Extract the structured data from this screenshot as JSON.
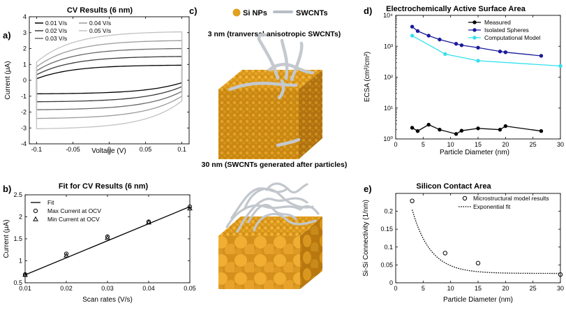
{
  "panel_labels": [
    "a)",
    "b)",
    "c)",
    "d)",
    "e)"
  ],
  "colors": {
    "axis": "#000000",
    "cv_curves": [
      "#000000",
      "#3a3a3a",
      "#6a6a6a",
      "#9a9a9a",
      "#c2c2c2"
    ],
    "measured": "#000000",
    "isolated": "#1a1a9c",
    "computational": "#33e0ee",
    "si_np": "#e0a020",
    "swcnt": "#b8bec6"
  },
  "chart_data": [
    {
      "id": "a",
      "type": "line",
      "title": "CV Results (6 nm)",
      "xlabel": "Voltage (V)",
      "ylabel": "Current (μA)",
      "xlim": [
        -0.11,
        0.11
      ],
      "ylim": [
        -4,
        4
      ],
      "xticks": [
        -0.1,
        -0.05,
        0,
        0.05,
        0.1
      ],
      "xtick_labels": [
        "-0.1",
        "-0.05",
        "0",
        "0.05",
        "0.1"
      ],
      "yticks": [
        -4,
        -3,
        -2,
        -1,
        0,
        1,
        2,
        3,
        4
      ],
      "grid": false,
      "legend_position": "top-left",
      "voltage_range": [
        -0.1,
        0.1
      ],
      "series": [
        {
          "name": "0.01 V/s",
          "upper_start": 0.1,
          "upper_end": 0.95,
          "lower_start": -0.85,
          "lower_end": -0.15
        },
        {
          "name": "0.02 V/s",
          "upper_start": 0.35,
          "upper_end": 1.5,
          "lower_start": -1.35,
          "lower_end": -0.4
        },
        {
          "name": "0.03 V/s",
          "upper_start": 0.6,
          "upper_end": 2.0,
          "lower_start": -1.85,
          "lower_end": -0.7
        },
        {
          "name": "0.04 V/s",
          "upper_start": 0.85,
          "upper_end": 2.5,
          "lower_start": -2.4,
          "lower_end": -1.0
        },
        {
          "name": "0.05 V/s",
          "upper_start": 1.15,
          "upper_end": 3.05,
          "lower_start": -3.05,
          "lower_end": -1.3
        }
      ]
    },
    {
      "id": "b",
      "type": "scatter",
      "title": "Fit for CV Results (6 nm)",
      "xlabel": "Scan rates (V/s)",
      "ylabel": "Current (μA)",
      "xlim": [
        0.01,
        0.05
      ],
      "ylim": [
        0.5,
        2.5
      ],
      "xticks": [
        0.01,
        0.02,
        0.03,
        0.04,
        0.05
      ],
      "yticks": [
        0.5,
        1,
        1.5,
        2,
        2.5
      ],
      "grid": false,
      "legend_position": "top-left",
      "x": [
        0.01,
        0.02,
        0.03,
        0.04,
        0.05
      ],
      "fit": {
        "name": "Fit",
        "x": [
          0.01,
          0.05
        ],
        "y": [
          0.68,
          2.23
        ]
      },
      "series": [
        {
          "name": "Max Current at OCV",
          "marker": "circle",
          "values": [
            0.69,
            1.16,
            1.55,
            1.89,
            2.23
          ]
        },
        {
          "name": "Min Current at OCV",
          "marker": "triangle",
          "values": [
            0.68,
            1.12,
            1.52,
            1.87,
            2.19
          ]
        }
      ]
    },
    {
      "id": "d",
      "type": "line",
      "title": "Electrochemically Active Surface Area",
      "xlabel": "Particle Diameter (nm)",
      "ylabel": "ECSA (cm²/cm²)",
      "xlim": [
        0,
        30
      ],
      "ylim": [
        1,
        10000
      ],
      "yscale": "log",
      "xticks": [
        0,
        5,
        10,
        15,
        20,
        25,
        30
      ],
      "yticks": [
        1,
        10,
        100,
        1000,
        10000
      ],
      "ytick_labels": [
        "10⁰",
        "10¹",
        "10²",
        "10³",
        "10⁴"
      ],
      "grid": false,
      "legend_position": "top-right",
      "series": [
        {
          "name": "Measured",
          "x": [
            3,
            4,
            6,
            8,
            11,
            12,
            15,
            19,
            20,
            26.5
          ],
          "values": [
            2.3,
            1.8,
            2.9,
            2.0,
            1.45,
            1.85,
            2.2,
            2.0,
            2.6,
            1.8
          ]
        },
        {
          "name": "Isolated Spheres",
          "x": [
            3,
            4,
            6,
            8,
            11,
            12,
            15,
            19,
            20,
            26.5
          ],
          "values": [
            4300,
            3100,
            2200,
            1650,
            1200,
            1080,
            900,
            680,
            640,
            490
          ]
        },
        {
          "name": "Computational Model",
          "x": [
            3,
            9,
            15,
            30
          ],
          "values": [
            2200,
            560,
            340,
            230
          ]
        }
      ]
    },
    {
      "id": "e",
      "type": "scatter",
      "title": "Silicon Contact Area",
      "xlabel": "Particle Diameter (nm)",
      "ylabel": "Si-Si Connectivity (1/nm)",
      "xlim": [
        0,
        30
      ],
      "ylim": [
        0,
        0.25
      ],
      "xticks": [
        0,
        5,
        10,
        15,
        20,
        25,
        30
      ],
      "yticks": [
        0,
        0.05,
        0.1,
        0.15,
        0.2
      ],
      "grid": false,
      "legend_position": "top-right",
      "series": [
        {
          "name": "Microstructural model results",
          "x": [
            3,
            9,
            15,
            30
          ],
          "values": [
            0.229,
            0.083,
            0.055,
            0.023
          ]
        }
      ],
      "fit": {
        "name": "Exponential fit",
        "type": "exponential",
        "x_range": [
          3,
          30
        ],
        "a": 0.4386,
        "b": 0.3004,
        "c": 0.0262
      }
    }
  ],
  "panel_c": {
    "legend": {
      "si_np": "Si NPs",
      "swcnt": "SWCNTs"
    },
    "top_caption": "3 nm (tranversal anisotropic SWCNTs)",
    "bottom_caption": "30 nm (SWCNTs generated after particles)"
  }
}
